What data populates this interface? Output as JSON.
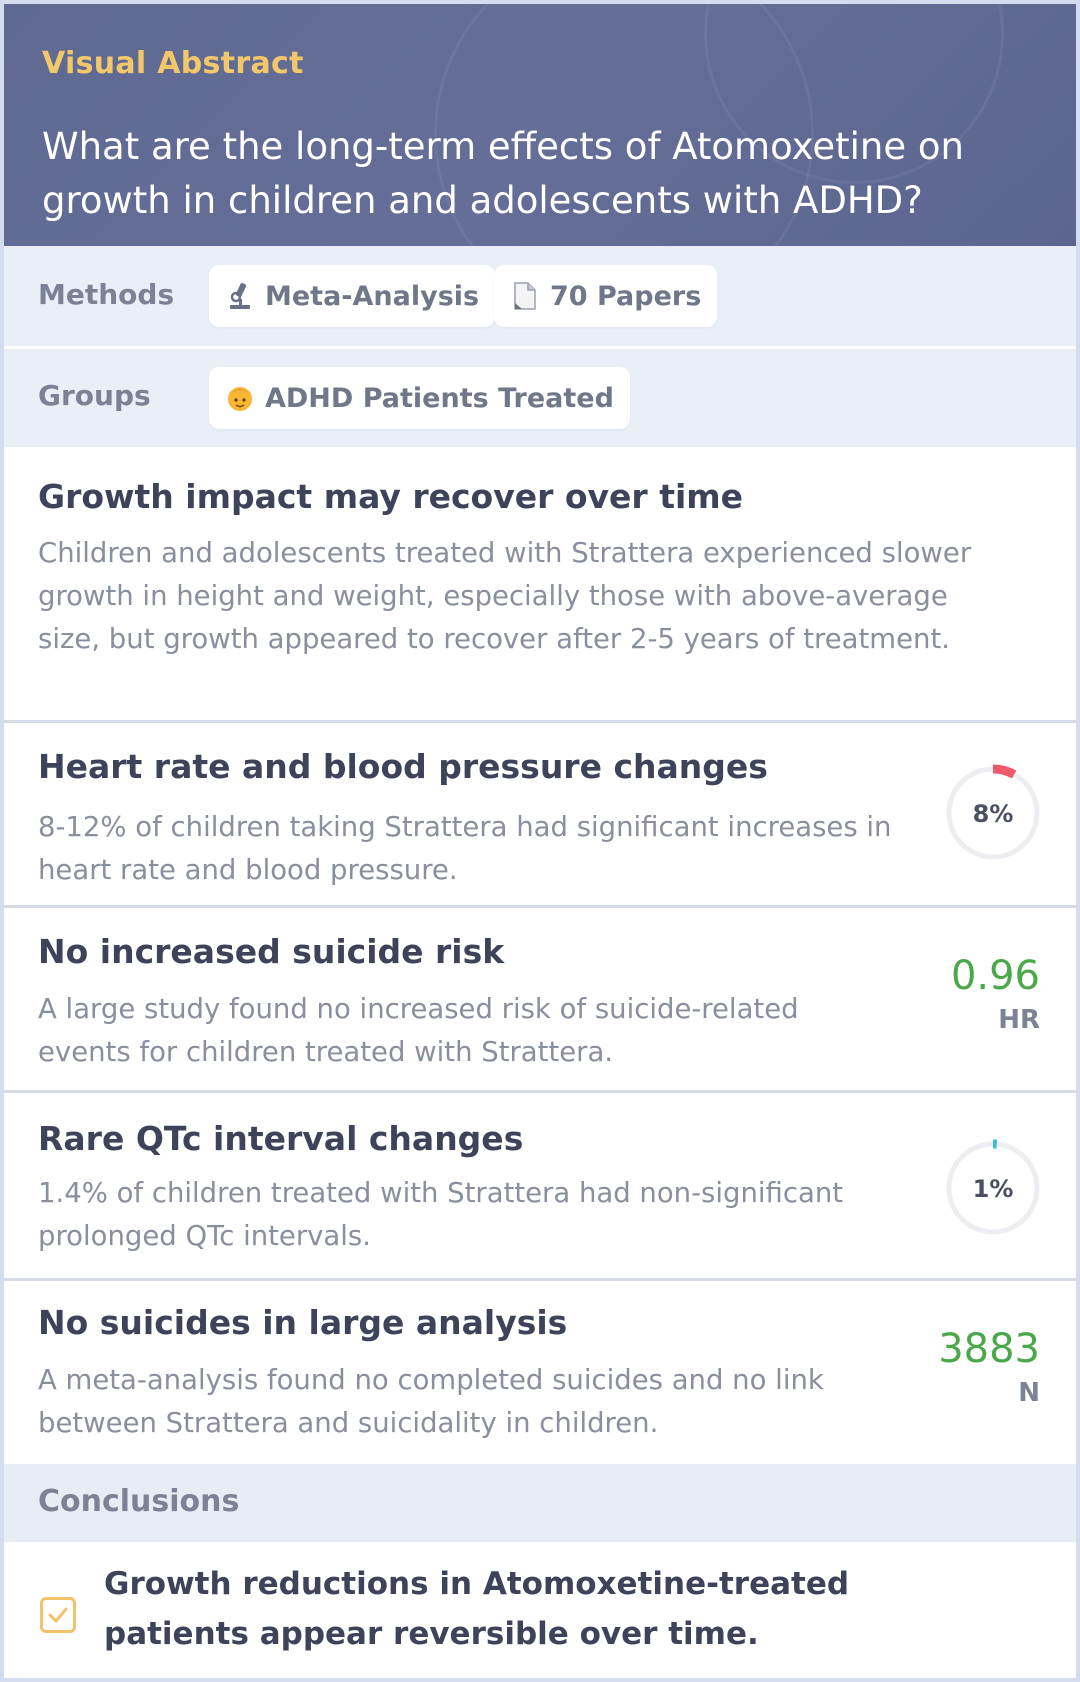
{
  "header": {
    "kicker": "Visual Abstract",
    "question": "What are the long-term effects of Atomoxetine on growth in children and adolescents with ADHD?"
  },
  "methods": {
    "label": "Methods",
    "chips": [
      {
        "icon": "microscope-icon",
        "text": "Meta-Analysis"
      },
      {
        "icon": "document-icon",
        "text": "70 Papers"
      }
    ]
  },
  "groups": {
    "label": "Groups",
    "chips": [
      {
        "icon": "child-icon",
        "text": "ADHD Patients Treated"
      }
    ]
  },
  "findings": [
    {
      "title": "Growth impact may recover over time",
      "body": "Children and adolescents treated with Strattera experienced slower growth in height and weight, especially those with above-average size, but growth appeared to recover after 2-5 years of treatment."
    },
    {
      "title": "Heart rate and blood pressure changes",
      "body": "8-12% of children taking Strattera had significant increases in heart rate and blood pressure.",
      "ring": {
        "label": "8%",
        "fraction": 0.08,
        "color": "#ef5a6a"
      }
    },
    {
      "title": "No increased suicide risk",
      "body": "A large study found no increased risk of suicide-related events for children treated with Strattera.",
      "metric": {
        "value": "0.96",
        "unit": "HR"
      }
    },
    {
      "title": "Rare QTc interval changes",
      "body": "1.4% of children treated with Strattera had non-significant prolonged QTc intervals.",
      "ring": {
        "label": "1%",
        "fraction": 0.014,
        "color": "#3bbde0"
      }
    },
    {
      "title": "No suicides in large analysis",
      "body": "A meta-analysis found no completed suicides and no link between Strattera and suicidality in children.",
      "metric": {
        "value": "3883",
        "unit": "N"
      }
    }
  ],
  "conclusions": {
    "label": "Conclusions",
    "items": [
      {
        "text": "Growth reductions in Atomoxetine-treated patients appear reversible over time.",
        "checked": true
      }
    ]
  },
  "colors": {
    "header_bg": "#626c94",
    "accent_yellow": "#f3c86a",
    "metric_green": "#4aa84a"
  }
}
